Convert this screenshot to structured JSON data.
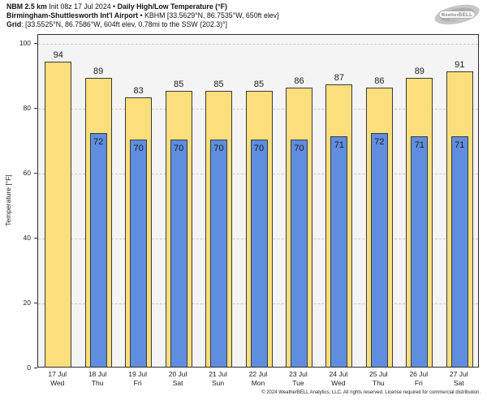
{
  "header": {
    "line1_bold1": "NBM 2.5 km",
    "line1_mid": " Init 08z 17 Jul 2024 • ",
    "line1_bold2": "Daily High/Low Temperature (°F)",
    "line2_bold": "Birmingham-Shuttlesworth Int'l Airport",
    "line2_rest": " • KBHM [33.5629°N, 86.7535°W, 650ft elev]",
    "line3_bold": "Grid",
    "line3_rest": ": [33.5525°N, 86.7586°W, 604ft elev, 0.78mi to the SSW (202.3)°]"
  },
  "logo": {
    "text_weather": "Weather",
    "text_bell": "BELL"
  },
  "chart_data": {
    "type": "bar",
    "title": "NBM 2.5 km Init 08z 17 Jul 2024 • Daily High/Low Temperature (°F)",
    "subtitle": "Birmingham-Shuttlesworth Int'l Airport • KBHM",
    "categories": [
      {
        "date": "17 Jul",
        "day": "Wed"
      },
      {
        "date": "18 Jul",
        "day": "Thu"
      },
      {
        "date": "19 Jul",
        "day": "Fri"
      },
      {
        "date": "20 Jul",
        "day": "Sat"
      },
      {
        "date": "21 Jul",
        "day": "Sun"
      },
      {
        "date": "22 Jul",
        "day": "Mon"
      },
      {
        "date": "23 Jul",
        "day": "Tue"
      },
      {
        "date": "24 Jul",
        "day": "Wed"
      },
      {
        "date": "25 Jul",
        "day": "Thu"
      },
      {
        "date": "26 Jul",
        "day": "Fri"
      },
      {
        "date": "27 Jul",
        "day": "Sat"
      }
    ],
    "series": [
      {
        "name": "Daily High",
        "color": "#fbdf7d",
        "values": [
          94,
          89,
          83,
          85,
          85,
          85,
          86,
          87,
          86,
          89,
          91
        ]
      },
      {
        "name": "Daily Low",
        "color": "#5f8ee0",
        "values": [
          null,
          72,
          70,
          70,
          70,
          70,
          70,
          71,
          72,
          71,
          71
        ]
      }
    ],
    "ylabel": "Temperature [°F]",
    "ylim": [
      0,
      100
    ],
    "yticks": [
      0,
      20,
      40,
      60,
      80,
      100
    ],
    "grid": "horizontal dashed at yticks",
    "value_labels": "high above bar, low inside bar top",
    "legend_position": "none"
  },
  "colors": {
    "high_bar": "#fbdf7d",
    "low_bar": "#5f8ee0",
    "bar_border": "#3a3a3a",
    "plot_background": "#f4f4f4",
    "gridline": "#cbcbcb",
    "axis": "#2f2f2f"
  },
  "footer": {
    "copyright": "© 2024 WeatherBELL Analytics, LLC. All rights reserved. License required for commercial distribution."
  }
}
